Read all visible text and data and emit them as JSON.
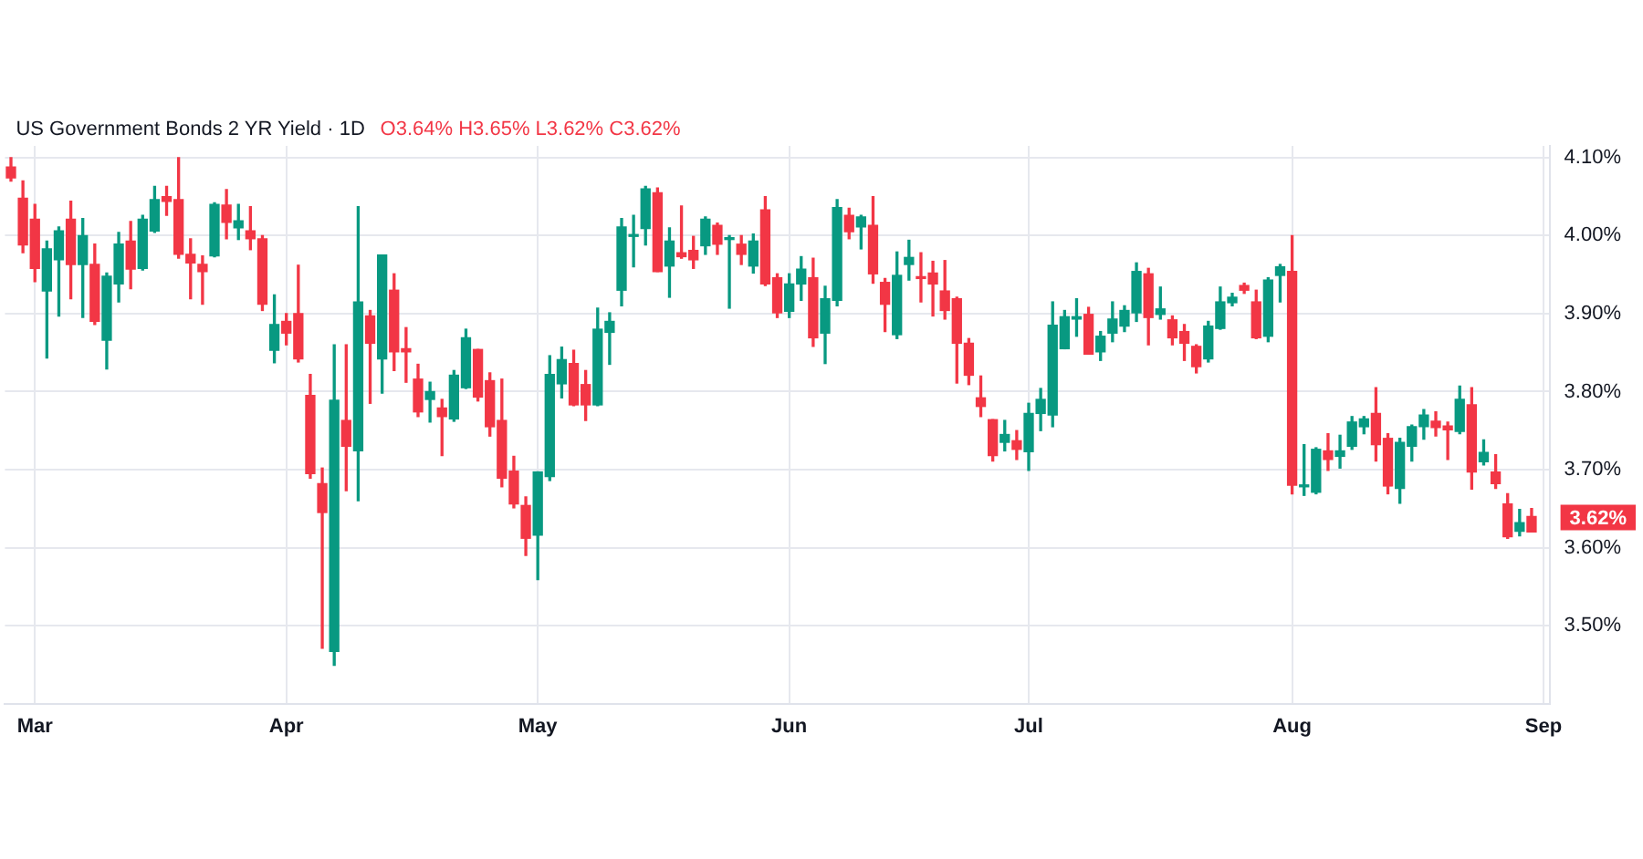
{
  "chart_data": {
    "type": "candlestick",
    "title": "US Government Bonds 2 YR Yield · 1D",
    "subtitle": "O3.64% H3.65% L3.62% C3.62%",
    "categories": [
      null,
      null,
      "Mar",
      null,
      null,
      null,
      null,
      null,
      null,
      null,
      null,
      null,
      null,
      null,
      null,
      null,
      null,
      null,
      null,
      null,
      null,
      null,
      null,
      "Apr",
      null,
      null,
      null,
      null,
      null,
      null,
      null,
      null,
      null,
      null,
      null,
      null,
      null,
      null,
      null,
      null,
      null,
      null,
      null,
      null,
      "May",
      null,
      null,
      null,
      null,
      null,
      null,
      null,
      null,
      null,
      null,
      null,
      null,
      null,
      null,
      null,
      null,
      null,
      null,
      null,
      null,
      "Jun",
      null,
      null,
      null,
      null,
      null,
      null,
      null,
      null,
      null,
      null,
      null,
      null,
      null,
      null,
      null,
      null,
      null,
      null,
      null,
      "Jul",
      null,
      null,
      null,
      null,
      null,
      null,
      null,
      null,
      null,
      null,
      null,
      null,
      null,
      null,
      null,
      null,
      null,
      null,
      null,
      null,
      null,
      "Aug",
      null,
      null,
      null,
      null,
      null,
      null,
      null,
      null,
      null,
      null,
      null,
      null,
      null,
      null,
      null,
      null,
      null,
      null,
      null,
      null,
      "Sep"
    ],
    "ohlc": [
      [
        4.088,
        4.1,
        4.07,
        4.074
      ],
      [
        4.048,
        4.07,
        3.978,
        3.988
      ],
      [
        4.021,
        4.04,
        3.941,
        3.958
      ],
      [
        3.929,
        3.993,
        3.843,
        3.983
      ],
      [
        3.969,
        4.011,
        3.897,
        4.006
      ],
      [
        4.021,
        4.044,
        3.919,
        3.963
      ],
      [
        3.963,
        4.022,
        3.895,
        4.0
      ],
      [
        3.963,
        3.989,
        3.886,
        3.89
      ],
      [
        3.866,
        3.952,
        3.829,
        3.948
      ],
      [
        3.938,
        4.004,
        3.915,
        3.989
      ],
      [
        3.993,
        4.018,
        3.932,
        3.957
      ],
      [
        3.958,
        4.026,
        3.956,
        4.021
      ],
      [
        4.006,
        4.063,
        4.004,
        4.046
      ],
      [
        4.05,
        4.063,
        4.026,
        4.044
      ],
      [
        4.046,
        4.1,
        3.971,
        3.976
      ],
      [
        3.976,
        3.996,
        3.919,
        3.965
      ],
      [
        3.963,
        3.974,
        3.912,
        3.954
      ],
      [
        3.974,
        4.042,
        3.973,
        4.04
      ],
      [
        4.039,
        4.059,
        3.996,
        4.017
      ],
      [
        4.01,
        4.04,
        3.995,
        4.019
      ],
      [
        4.006,
        4.037,
        3.982,
        3.996
      ],
      [
        3.996,
        4.0,
        3.904,
        3.912
      ],
      [
        3.853,
        3.924,
        3.837,
        3.886
      ],
      [
        3.89,
        3.9,
        3.86,
        3.875
      ],
      [
        3.9,
        3.962,
        3.838,
        3.842
      ],
      [
        3.795,
        3.822,
        3.689,
        3.695
      ],
      [
        3.682,
        3.702,
        3.471,
        3.645
      ],
      [
        3.467,
        3.86,
        3.449,
        3.789
      ],
      [
        3.763,
        3.86,
        3.673,
        3.73
      ],
      [
        3.724,
        4.037,
        3.66,
        3.915
      ],
      [
        3.897,
        3.904,
        3.785,
        3.862
      ],
      [
        3.842,
        3.975,
        3.798,
        3.975
      ],
      [
        3.93,
        3.951,
        3.827,
        3.851
      ],
      [
        3.855,
        3.882,
        3.812,
        3.851
      ],
      [
        3.816,
        3.835,
        3.768,
        3.774
      ],
      [
        3.79,
        3.812,
        3.761,
        3.8
      ],
      [
        3.779,
        3.79,
        3.718,
        3.768
      ],
      [
        3.765,
        3.827,
        3.762,
        3.821
      ],
      [
        3.805,
        3.88,
        3.804,
        3.869
      ],
      [
        3.854,
        3.854,
        3.788,
        3.793
      ],
      [
        3.814,
        3.824,
        3.743,
        3.755
      ],
      [
        3.763,
        3.816,
        3.678,
        3.689
      ],
      [
        3.698,
        3.717,
        3.651,
        3.656
      ],
      [
        3.654,
        3.665,
        3.59,
        3.612
      ],
      [
        3.616,
        3.697,
        3.559,
        3.697
      ],
      [
        3.691,
        3.846,
        3.686,
        3.822
      ],
      [
        3.81,
        3.857,
        3.792,
        3.841
      ],
      [
        3.836,
        3.853,
        3.782,
        3.783
      ],
      [
        3.809,
        3.827,
        3.763,
        3.783
      ],
      [
        3.783,
        3.907,
        3.782,
        3.88
      ],
      [
        3.876,
        3.901,
        3.835,
        3.89
      ],
      [
        3.93,
        4.022,
        3.91,
        4.011
      ],
      [
        3.999,
        4.026,
        3.96,
        4.001
      ],
      [
        4.009,
        4.063,
        3.988,
        4.06
      ],
      [
        4.055,
        4.061,
        3.954,
        3.954
      ],
      [
        3.961,
        4.01,
        3.921,
        3.993
      ],
      [
        3.978,
        4.038,
        3.971,
        3.973
      ],
      [
        3.981,
        3.999,
        3.958,
        3.969
      ],
      [
        3.987,
        4.024,
        3.976,
        4.021
      ],
      [
        4.013,
        4.016,
        3.976,
        3.989
      ],
      [
        3.995,
        4.0,
        3.907,
        3.996
      ],
      [
        3.989,
        4.0,
        3.963,
        3.976
      ],
      [
        3.961,
        4.002,
        3.952,
        3.993
      ],
      [
        4.033,
        4.05,
        3.936,
        3.938
      ],
      [
        3.946,
        3.951,
        3.895,
        3.901
      ],
      [
        3.903,
        3.951,
        3.895,
        3.938
      ],
      [
        3.938,
        3.973,
        3.917,
        3.957
      ],
      [
        3.946,
        3.971,
        3.858,
        3.869
      ],
      [
        3.875,
        3.935,
        3.836,
        3.919
      ],
      [
        3.917,
        4.046,
        3.91,
        4.036
      ],
      [
        4.026,
        4.035,
        3.996,
        4.005
      ],
      [
        4.011,
        4.026,
        3.983,
        4.024
      ],
      [
        4.013,
        4.05,
        3.939,
        3.951
      ],
      [
        3.94,
        3.945,
        3.877,
        3.912
      ],
      [
        3.873,
        3.979,
        3.868,
        3.949
      ],
      [
        3.963,
        3.994,
        3.943,
        3.972
      ],
      [
        3.947,
        3.978,
        3.915,
        3.945
      ],
      [
        3.952,
        3.967,
        3.897,
        3.938
      ],
      [
        3.929,
        3.968,
        3.893,
        3.904
      ],
      [
        3.919,
        3.921,
        3.811,
        3.862
      ],
      [
        3.862,
        3.868,
        3.809,
        3.821
      ],
      [
        3.792,
        3.82,
        3.768,
        3.781
      ],
      [
        3.764,
        3.764,
        3.711,
        3.718
      ],
      [
        3.735,
        3.763,
        3.724,
        3.745
      ],
      [
        3.737,
        3.75,
        3.713,
        3.726
      ],
      [
        3.723,
        3.785,
        3.699,
        3.772
      ],
      [
        3.772,
        3.804,
        3.75,
        3.79
      ],
      [
        3.77,
        3.915,
        3.755,
        3.885
      ],
      [
        3.855,
        3.904,
        3.855,
        3.896
      ],
      [
        3.893,
        3.919,
        3.871,
        3.896
      ],
      [
        3.899,
        3.908,
        3.848,
        3.848
      ],
      [
        3.851,
        3.877,
        3.84,
        3.871
      ],
      [
        3.875,
        3.915,
        3.864,
        3.893
      ],
      [
        3.884,
        3.91,
        3.877,
        3.904
      ],
      [
        3.901,
        3.965,
        3.89,
        3.954
      ],
      [
        3.951,
        3.958,
        3.86,
        3.895
      ],
      [
        3.899,
        3.934,
        3.893,
        3.906
      ],
      [
        3.892,
        3.897,
        3.86,
        3.869
      ],
      [
        3.877,
        3.886,
        3.84,
        3.862
      ],
      [
        3.858,
        3.86,
        3.824,
        3.832
      ],
      [
        3.842,
        3.89,
        3.838,
        3.884
      ],
      [
        3.881,
        3.934,
        3.88,
        3.915
      ],
      [
        3.914,
        3.926,
        3.91,
        3.921
      ],
      [
        3.936,
        3.939,
        3.926,
        3.93
      ],
      [
        3.915,
        3.93,
        3.868,
        3.869
      ],
      [
        3.871,
        3.946,
        3.864,
        3.943
      ],
      [
        3.949,
        3.963,
        3.915,
        3.96
      ],
      [
        3.954,
        4.0,
        3.669,
        3.68
      ],
      [
        3.678,
        3.732,
        3.667,
        3.68
      ],
      [
        3.671,
        3.728,
        3.669,
        3.726
      ],
      [
        3.724,
        3.746,
        3.699,
        3.713
      ],
      [
        3.717,
        3.744,
        3.702,
        3.724
      ],
      [
        3.73,
        3.768,
        3.726,
        3.761
      ],
      [
        3.755,
        3.768,
        3.746,
        3.765
      ],
      [
        3.772,
        3.805,
        3.711,
        3.732
      ],
      [
        3.74,
        3.746,
        3.669,
        3.679
      ],
      [
        3.676,
        3.74,
        3.657,
        3.735
      ],
      [
        3.73,
        3.757,
        3.711,
        3.755
      ],
      [
        3.755,
        3.777,
        3.739,
        3.77
      ],
      [
        3.762,
        3.774,
        3.743,
        3.754
      ],
      [
        3.756,
        3.761,
        3.713,
        3.751
      ],
      [
        3.749,
        3.807,
        3.746,
        3.79
      ],
      [
        3.783,
        3.805,
        3.675,
        3.697
      ],
      [
        3.71,
        3.738,
        3.706,
        3.722
      ],
      [
        3.697,
        3.719,
        3.676,
        3.682
      ],
      [
        3.656,
        3.669,
        3.612,
        3.614
      ],
      [
        3.621,
        3.649,
        3.615,
        3.632
      ],
      [
        3.64,
        3.65,
        3.62,
        3.62
      ],
      null
    ],
    "ylim": [
      3.4,
      4.115
    ],
    "yticks": [
      {
        "value": 3.5,
        "label": "3.50%"
      },
      {
        "value": 3.6,
        "label": "3.60%"
      },
      {
        "value": 3.7,
        "label": "3.70%"
      },
      {
        "value": 3.8,
        "label": "3.80%"
      },
      {
        "value": 3.9,
        "label": "3.90%"
      },
      {
        "value": 4.0,
        "label": "4.00%"
      },
      {
        "value": 4.1,
        "label": "4.10%"
      }
    ],
    "grid": true,
    "annotations": [
      "3.62%"
    ]
  }
}
